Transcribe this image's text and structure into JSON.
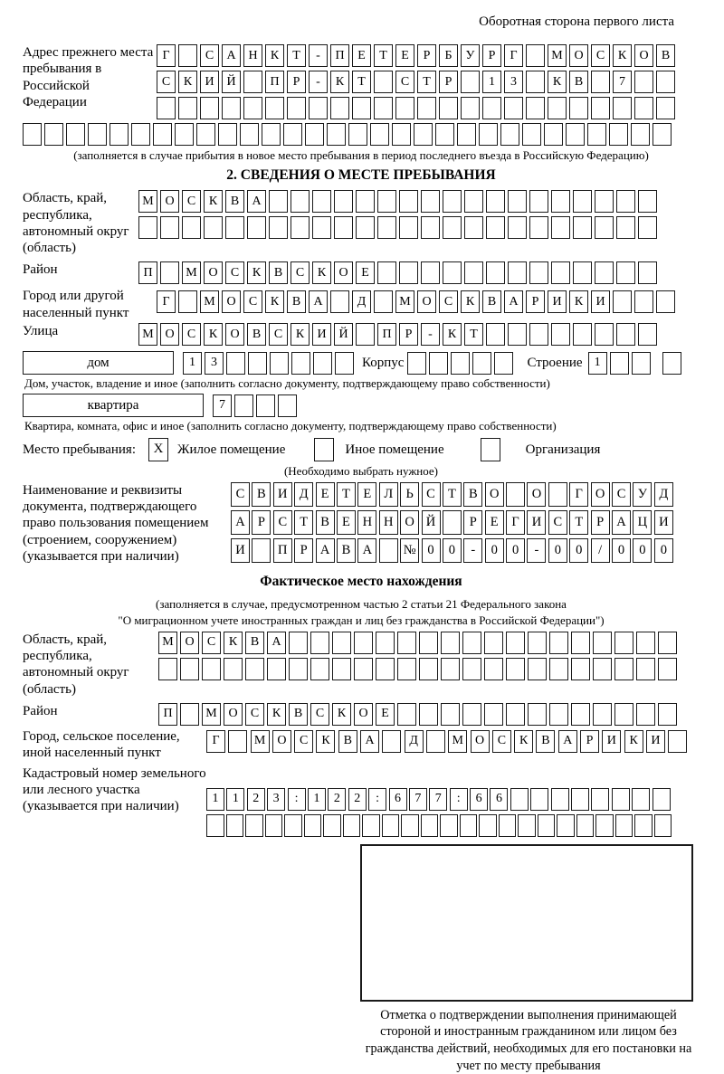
{
  "page": {
    "title_right": "Оборотная сторона первого листа"
  },
  "prev_address": {
    "label": "Адрес прежнего места пребывания в Российской Федерации",
    "rows": [
      {
        "text": "Г САНКТ-ПЕТЕРБУРГ МОСКОВ",
        "count": 24
      },
      {
        "text": "СКИЙ ПР-КТ СТР 13 КВ 7",
        "count": 24
      },
      {
        "text": "",
        "count": 24
      },
      {
        "text": "",
        "count": 30
      }
    ],
    "note": "(заполняется в случае прибытия в новое место пребывания в период последнего въезда в Российскую Федерацию)"
  },
  "section2": {
    "heading": "2. СВЕДЕНИЯ О МЕСТЕ ПРЕБЫВАНИЯ",
    "region": {
      "label": "Область, край, республика, автономный округ (область)",
      "rows": [
        {
          "text": "МОСКВА",
          "count": 24
        },
        {
          "text": "",
          "count": 24
        }
      ]
    },
    "district": {
      "label": "Район",
      "row": {
        "text": "П МОСКВСКОЕ",
        "count": 24
      }
    },
    "city": {
      "label": "Город или другой населенный пункт",
      "row": {
        "text": "Г МОСКВА Д МОСКВАРИКИ",
        "count": 24
      }
    },
    "street": {
      "label": "Улица",
      "row": {
        "text": "МОСКОВСКИЙ ПР-КТ",
        "count": 24
      }
    },
    "house": {
      "box_label": "дом",
      "cells": {
        "text": "13",
        "count": 8
      },
      "korpus_label": "Корпус",
      "korpus_cells": {
        "text": "",
        "count": 5
      },
      "stroenie_label": "Строение",
      "stroenie_cells": {
        "text": "1",
        "count": 3
      },
      "stroenie_extra": {
        "text": "",
        "count": 1
      },
      "note": "Дом, участок, владение и иное (заполнить согласно документу, подтверждающему право собственности)"
    },
    "apartment": {
      "box_label": "квартира",
      "cells": {
        "text": "7",
        "count": 4
      },
      "note": "Квартира, комната, офис и иное (заполнить согласно документу, подтверждающему право собственности)"
    },
    "stay_type": {
      "label": "Место пребывания:",
      "options": [
        {
          "value": "X",
          "label": "Жилое помещение"
        },
        {
          "value": "",
          "label": "Иное помещение"
        },
        {
          "value": "",
          "label": "Организация"
        }
      ],
      "note": "(Необходимо выбрать нужное)"
    },
    "document": {
      "label": "Наименование и реквизиты документа, подтверждающего право пользования помещением (строением, сооружением) (указывается при наличии)",
      "rows": [
        {
          "text": "СВИДЕТЕЛЬСТВО О ГОСУД",
          "count": 21
        },
        {
          "text": "АРСТВЕННОЙ РЕГИСТРАЦИ",
          "count": 21
        },
        {
          "text": "И ПРАВА №00-00-00/000",
          "count": 21
        }
      ]
    }
  },
  "actual_location": {
    "heading": "Фактическое место нахождения",
    "note_line1": "(заполняется в случае, предусмотренном частью 2 статьи 21 Федерального закона",
    "note_line2": "\"О миграционном учете иностранных граждан и лиц без гражданства в Российской Федерации\")",
    "region": {
      "label": "Область, край, республика, автономный округ (область)",
      "rows": [
        {
          "text": "МОСКВА",
          "count": 24
        },
        {
          "text": "",
          "count": 24
        }
      ]
    },
    "district": {
      "label": "Район",
      "row": {
        "text": "П МОСКВСКОЕ",
        "count": 24
      }
    },
    "city": {
      "label": "Город, сельское поселение, иной населенный пункт",
      "row": {
        "text": "Г МОСКВА Д МОСКВАРИКИ",
        "count": 22
      }
    },
    "cadastre": {
      "label": "Кадастровый номер земельного или лесного участка (указывается при наличии)",
      "rows": [
        {
          "text": "1123:122:677:66",
          "count": 23
        },
        {
          "text": "",
          "count": 24
        }
      ]
    }
  },
  "stamp": {
    "caption": "Отметка о подтверждении выполнения принимающей стороной и иностранным гражданином или лицом без гражданства действий, необходимых для его постановки на учет по месту пребывания"
  }
}
